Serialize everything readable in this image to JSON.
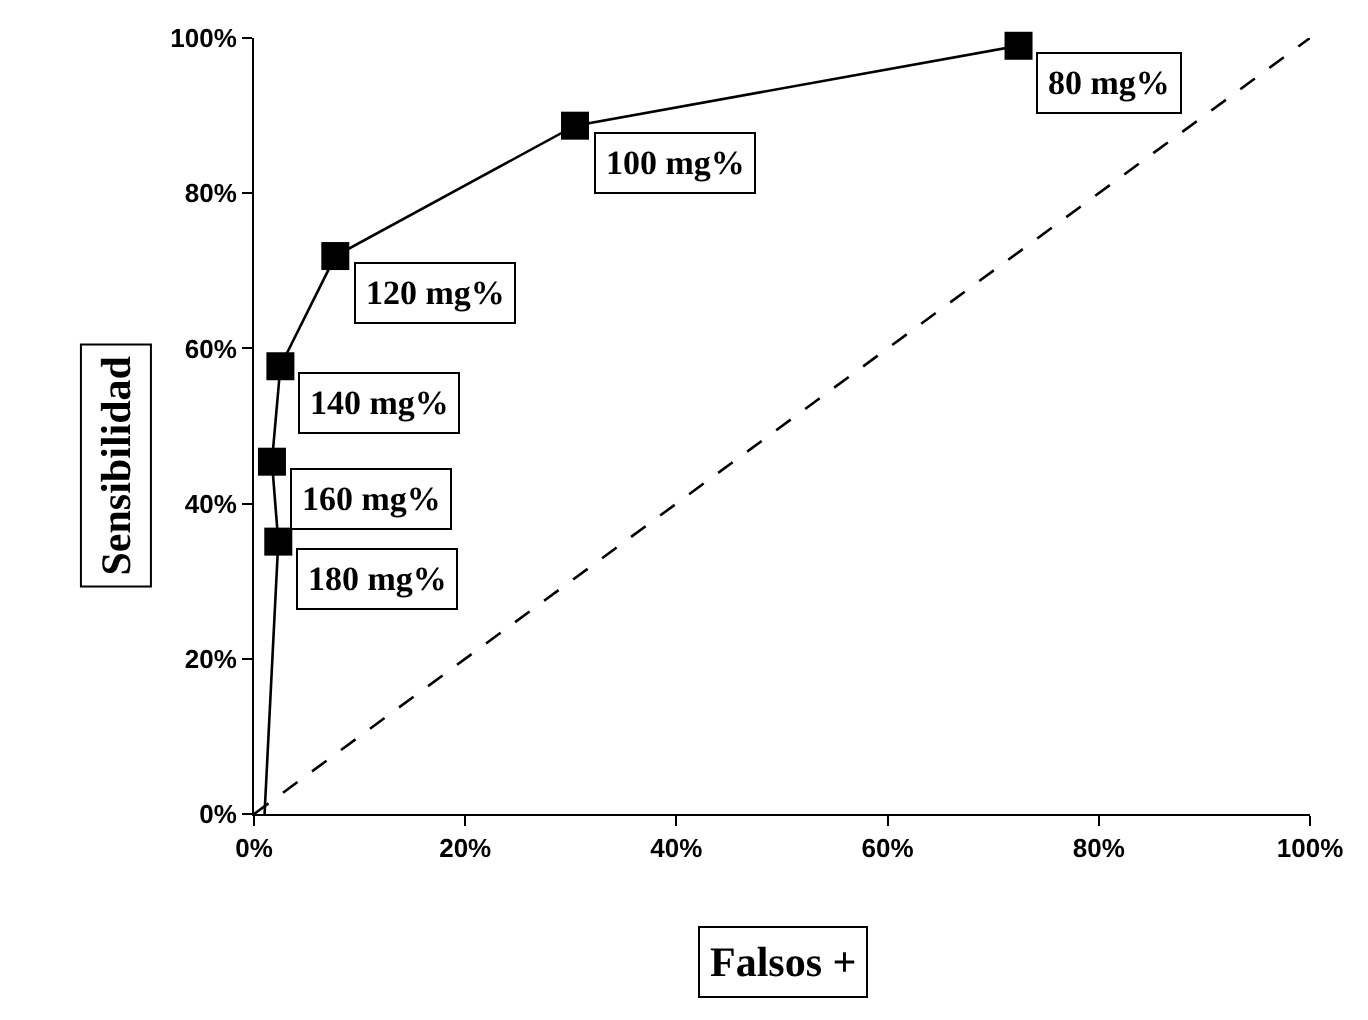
{
  "chart_data": {
    "type": "line",
    "xlabel": "Falsos +",
    "ylabel": "Sensibilidad",
    "series": [
      {
        "color": "#000000",
        "x": [
          1,
          2.3,
          1.7,
          2.5,
          7.7,
          30.4,
          72.4
        ],
        "values": [
          0,
          35.1,
          45.4,
          57.7,
          71.9,
          88.7,
          99.0
        ]
      },
      {
        "type": "line",
        "color": "#000000",
        "marker": "none",
        "line_style": "dashed",
        "x": [
          0,
          100
        ],
        "values": [
          0,
          100
        ]
      }
    ],
    "annotations": [
      {
        "text": "180 mg%",
        "x": 2.3,
        "y": 35.1
      },
      {
        "text": "160 mg%",
        "x": 1.7,
        "y": 45.4
      },
      {
        "text": "140 mg%",
        "x": 2.5,
        "y": 57.7
      },
      {
        "text": "120 mg%",
        "x": 7.7,
        "y": 71.9
      },
      {
        "text": "100 mg%",
        "x": 30.4,
        "y": 88.7
      },
      {
        "text": "80 mg%",
        "x": 72.4,
        "y": 99.0
      }
    ],
    "xlim": [
      0,
      100
    ],
    "ylim": [
      0,
      100
    ],
    "xticks": [
      {
        "value": 0,
        "label": "0%"
      },
      {
        "value": 20,
        "label": "20%"
      },
      {
        "value": 40,
        "label": "40%"
      },
      {
        "value": 60,
        "label": "60%"
      },
      {
        "value": 80,
        "label": "80%"
      },
      {
        "value": 100,
        "label": "100%"
      }
    ],
    "yticks": [
      {
        "value": 0,
        "label": "0%"
      },
      {
        "value": 20,
        "label": "20%"
      },
      {
        "value": 40,
        "label": "40%"
      },
      {
        "value": 60,
        "label": "60%"
      },
      {
        "value": 80,
        "label": "80%"
      },
      {
        "value": 100,
        "label": "100%"
      }
    ],
    "marker": "square"
  }
}
